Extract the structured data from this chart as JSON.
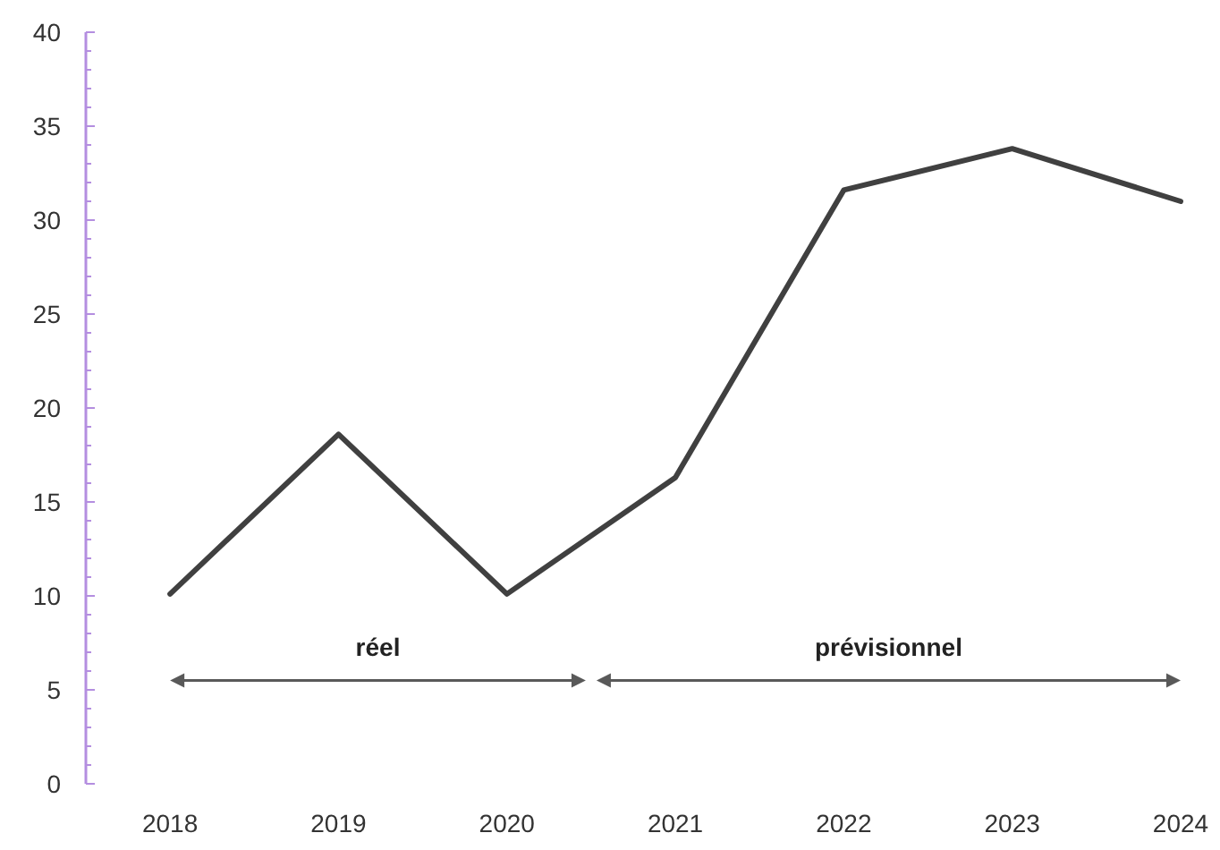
{
  "chart_data": {
    "type": "line",
    "x": [
      2018,
      2019,
      2020,
      2021,
      2022,
      2023,
      2024
    ],
    "series": [
      {
        "color": "#404040",
        "values": [
          10.1,
          18.6,
          10.1,
          16.3,
          31.6,
          33.8,
          31.0
        ]
      }
    ],
    "xlim": [
      2017.5,
      2024
    ],
    "xticks": [
      2018,
      2019,
      2020,
      2021,
      2022,
      2023,
      2024
    ],
    "ylim": [
      0,
      40
    ],
    "yticks": [
      0,
      {
        "value": 1,
        "label": null
      },
      {
        "value": 2,
        "label": null
      },
      {
        "value": 3,
        "label": null
      },
      {
        "value": 4,
        "label": null
      },
      5,
      {
        "value": 6,
        "label": null
      },
      {
        "value": 7,
        "label": null
      },
      {
        "value": 8,
        "label": null
      },
      {
        "value": 9,
        "label": null
      },
      10,
      {
        "value": 11,
        "label": null
      },
      {
        "value": 12,
        "label": null
      },
      {
        "value": 13,
        "label": null
      },
      {
        "value": 14,
        "label": null
      },
      15,
      {
        "value": 16,
        "label": null
      },
      {
        "value": 17,
        "label": null
      },
      {
        "value": 18,
        "label": null
      },
      {
        "value": 19,
        "label": null
      },
      20,
      {
        "value": 21,
        "label": null
      },
      {
        "value": 22,
        "label": null
      },
      {
        "value": 23,
        "label": null
      },
      {
        "value": 24,
        "label": null
      },
      25,
      {
        "value": 26,
        "label": null
      },
      {
        "value": 27,
        "label": null
      },
      {
        "value": 28,
        "label": null
      },
      {
        "value": 29,
        "label": null
      },
      30,
      {
        "value": 31,
        "label": null
      },
      {
        "value": 32,
        "label": null
      },
      {
        "value": 33,
        "label": null
      },
      {
        "value": 34,
        "label": null
      },
      35,
      {
        "value": 36,
        "label": null
      },
      {
        "value": 37,
        "label": null
      },
      {
        "value": 38,
        "label": null
      },
      {
        "value": 39,
        "label": null
      },
      40
    ],
    "annotations": [
      "réel",
      "prévisionnel"
    ],
    "grid": false,
    "marker": "none",
    "line_style": "solid"
  }
}
